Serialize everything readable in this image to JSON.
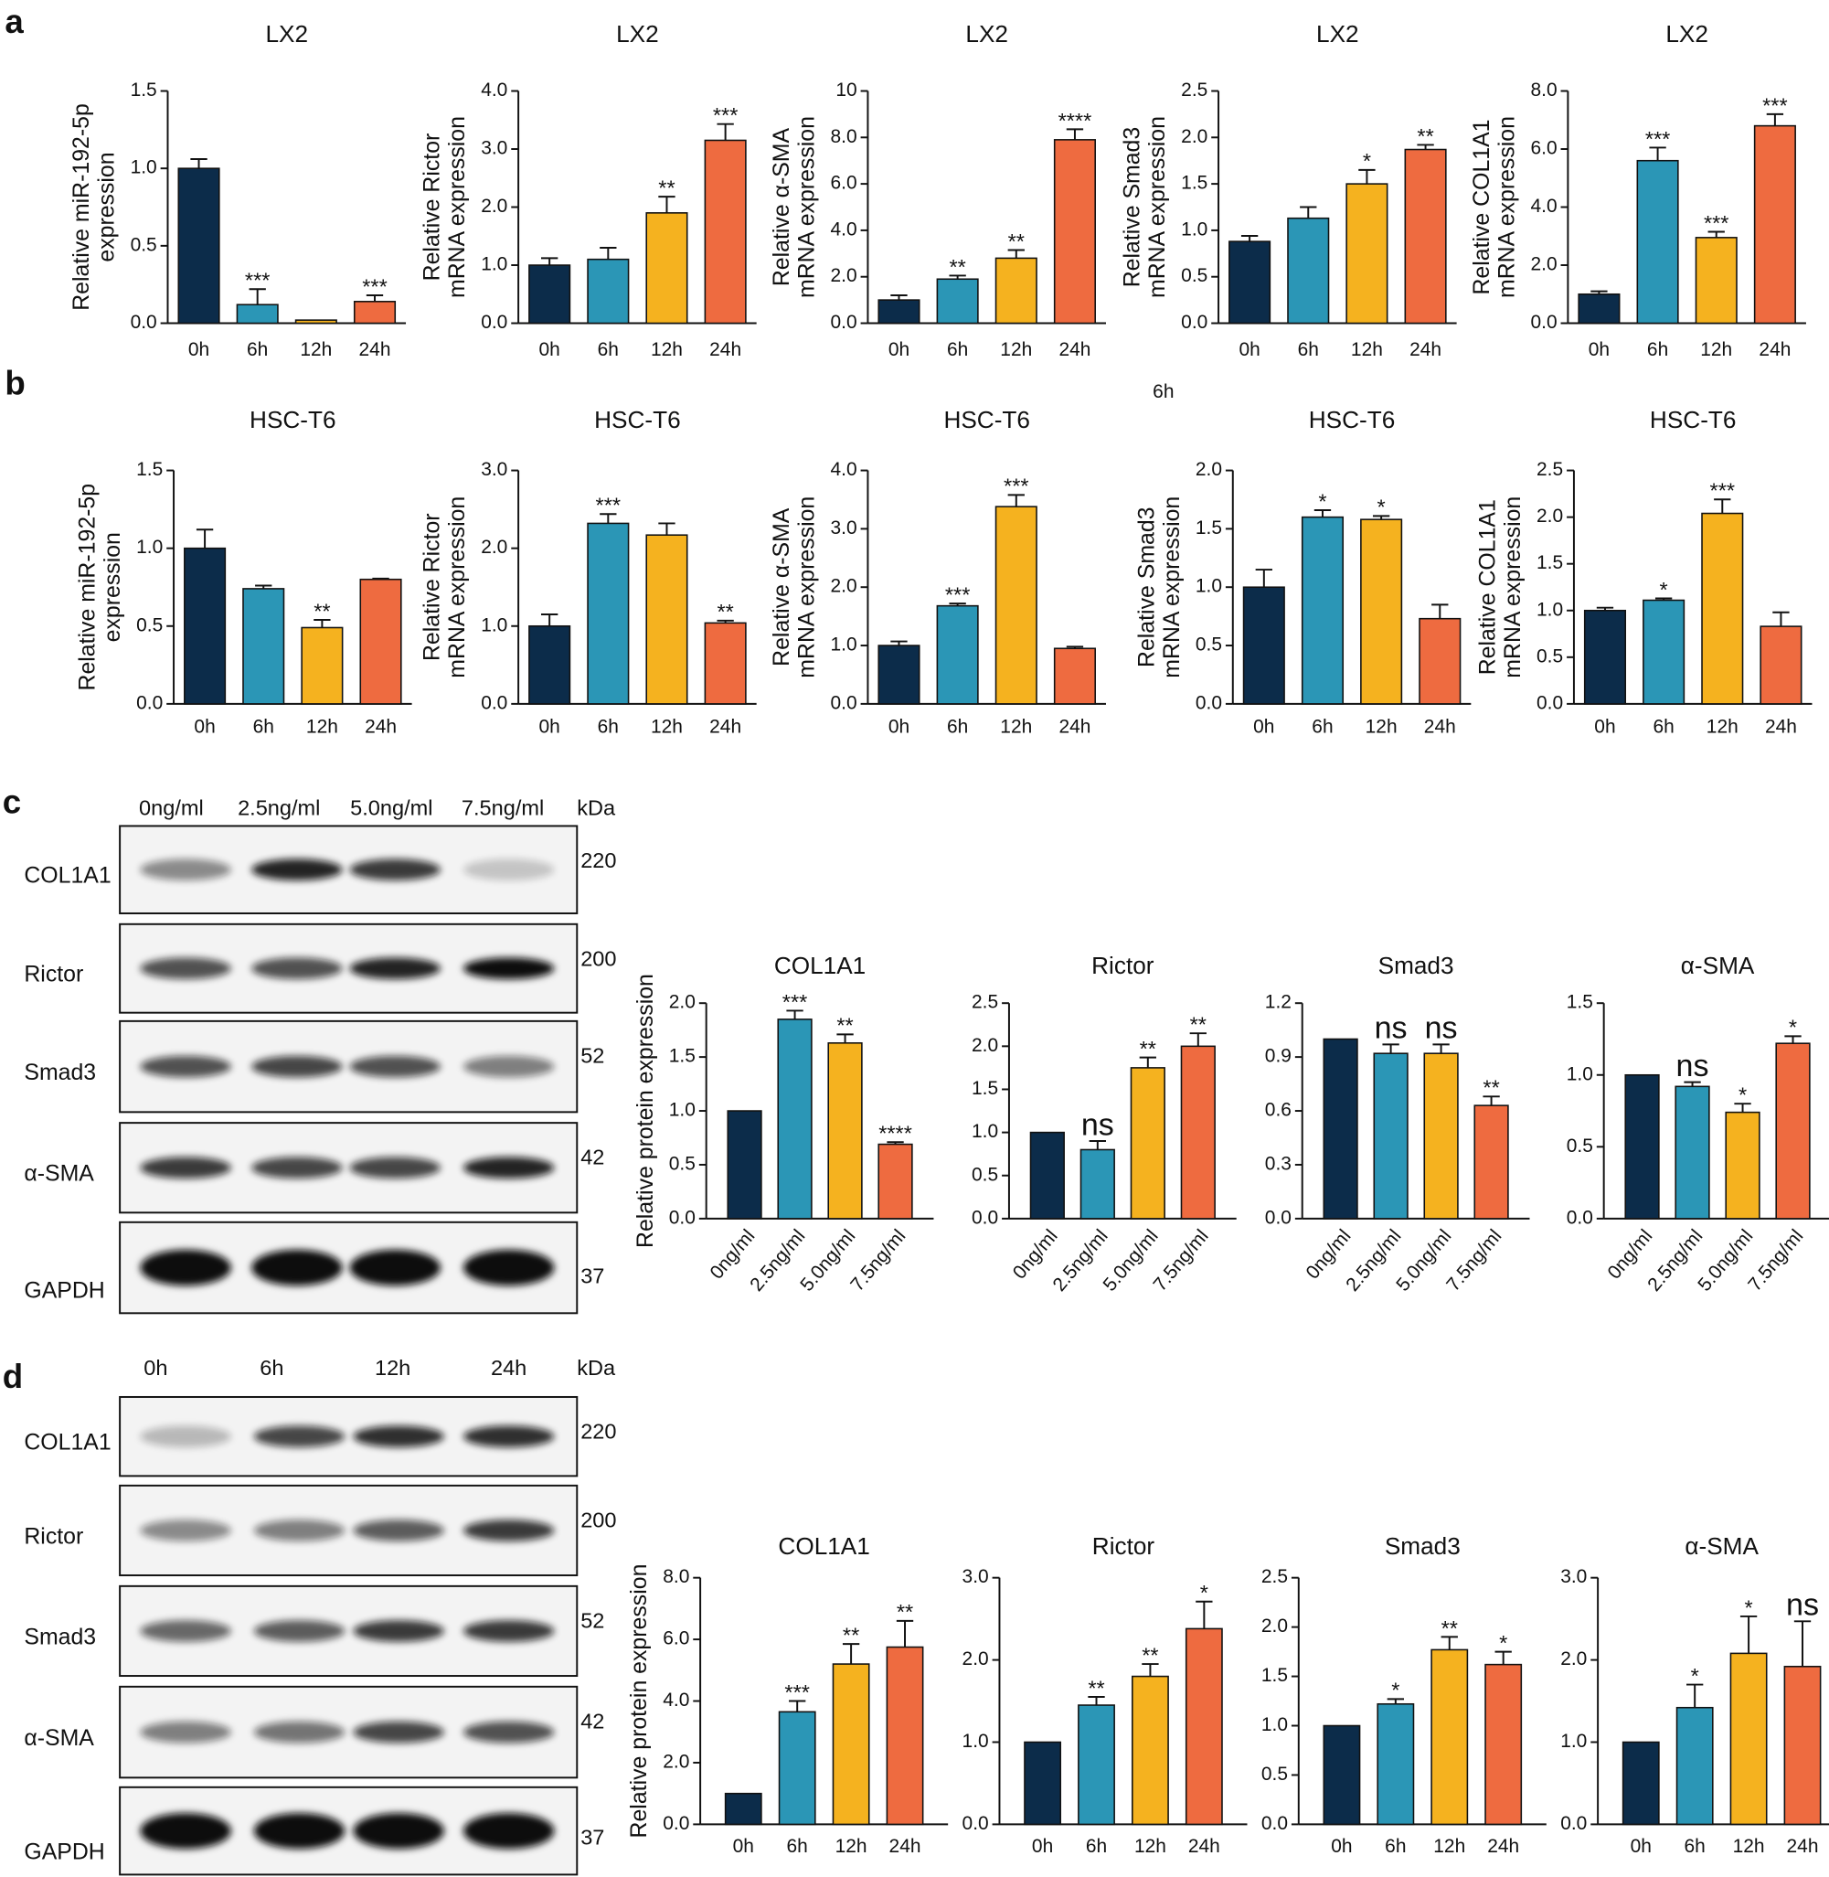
{
  "panel_labels": [
    "a",
    "b",
    "c",
    "d"
  ],
  "extra_label": "6h",
  "chart_data": [
    {
      "type": "bar",
      "title": "LX2",
      "ylabel": [
        "Relative miR-192-5p",
        "expression"
      ],
      "categories": [
        "0h",
        "6h",
        "12h",
        "24h"
      ],
      "values": [
        1.0,
        0.12,
        0.02,
        0.14
      ],
      "errors": [
        0.06,
        0.1,
        null,
        0.04
      ],
      "annotations": [
        null,
        "***",
        null,
        "***"
      ],
      "colors": [
        "#0c2c4a",
        "#2b96b6",
        "#f5b21f",
        "#ee6b40"
      ],
      "ylim": [
        0,
        1.5
      ],
      "yticks": [
        {
          "value": 0,
          "label": "0.0"
        },
        0.5,
        {
          "value": 1,
          "label": "1.0"
        },
        1.5
      ]
    },
    {
      "type": "bar",
      "title": "LX2",
      "ylabel": [
        "Relative Rictor",
        "mRNA expression"
      ],
      "categories": [
        "0h",
        "6h",
        "12h",
        "24h"
      ],
      "values": [
        1.0,
        1.1,
        1.9,
        3.15
      ],
      "errors": [
        0.12,
        0.2,
        0.28,
        0.28
      ],
      "annotations": [
        null,
        null,
        "**",
        "***"
      ],
      "colors": [
        "#0c2c4a",
        "#2b96b6",
        "#f5b21f",
        "#ee6b40"
      ],
      "ylim": [
        0,
        4
      ],
      "yticks": [
        {
          "value": 0,
          "label": "0.0"
        },
        {
          "value": 1,
          "label": "1.0"
        },
        {
          "value": 2,
          "label": "2.0"
        },
        {
          "value": 3,
          "label": "3.0"
        },
        {
          "value": 4,
          "label": "4.0"
        }
      ]
    },
    {
      "type": "bar",
      "title": "LX2",
      "ylabel": [
        "Relative α-SMA",
        "mRNA expression"
      ],
      "categories": [
        "0h",
        "6h",
        "12h",
        "24h"
      ],
      "values": [
        1.0,
        1.9,
        2.8,
        7.9
      ],
      "errors": [
        0.2,
        0.15,
        0.35,
        0.45
      ],
      "annotations": [
        null,
        "**",
        "**",
        "****"
      ],
      "colors": [
        "#0c2c4a",
        "#2b96b6",
        "#f5b21f",
        "#ee6b40"
      ],
      "ylim": [
        0,
        10
      ],
      "yticks": [
        {
          "value": 0,
          "label": "0.0"
        },
        {
          "value": 2,
          "label": "2.0"
        },
        {
          "value": 4,
          "label": "4.0"
        },
        {
          "value": 6,
          "label": "6.0"
        },
        {
          "value": 8,
          "label": "8.0"
        },
        10
      ]
    },
    {
      "type": "bar",
      "title": "LX2",
      "ylabel": [
        "Relative Smad3",
        "mRNA expression"
      ],
      "categories": [
        "0h",
        "6h",
        "12h",
        "24h"
      ],
      "values": [
        0.88,
        1.13,
        1.5,
        1.87
      ],
      "errors": [
        0.06,
        0.12,
        0.15,
        0.05
      ],
      "annotations": [
        null,
        null,
        "*",
        "**"
      ],
      "colors": [
        "#0c2c4a",
        "#2b96b6",
        "#f5b21f",
        "#ee6b40"
      ],
      "ylim": [
        0,
        2.5
      ],
      "yticks": [
        {
          "value": 0,
          "label": "0.0"
        },
        0.5,
        {
          "value": 1,
          "label": "1.0"
        },
        1.5,
        {
          "value": 2,
          "label": "2.0"
        },
        2.5
      ]
    },
    {
      "type": "bar",
      "title": "LX2",
      "ylabel": [
        "Relative COL1A1",
        "mRNA expression"
      ],
      "categories": [
        "0h",
        "6h",
        "12h",
        "24h"
      ],
      "values": [
        1.0,
        5.6,
        2.95,
        6.8
      ],
      "errors": [
        0.1,
        0.45,
        0.2,
        0.4
      ],
      "annotations": [
        null,
        "***",
        "***",
        "***"
      ],
      "colors": [
        "#0c2c4a",
        "#2b96b6",
        "#f5b21f",
        "#ee6b40"
      ],
      "ylim": [
        0,
        8
      ],
      "yticks": [
        {
          "value": 0,
          "label": "0.0"
        },
        {
          "value": 2,
          "label": "2.0"
        },
        {
          "value": 4,
          "label": "4.0"
        },
        {
          "value": 6,
          "label": "6.0"
        },
        {
          "value": 8,
          "label": "8.0"
        }
      ]
    },
    {
      "type": "bar",
      "title": "HSC-T6",
      "ylabel": [
        "Relative miR-192-5p",
        "expression"
      ],
      "categories": [
        "0h",
        "6h",
        "12h",
        "24h"
      ],
      "values": [
        1.0,
        0.74,
        0.49,
        0.8
      ],
      "errors": [
        0.12,
        0.02,
        0.05,
        0.005
      ],
      "annotations": [
        null,
        null,
        "**",
        null
      ],
      "colors": [
        "#0c2c4a",
        "#2b96b6",
        "#f5b21f",
        "#ee6b40"
      ],
      "ylim": [
        0,
        1.5
      ],
      "yticks": [
        {
          "value": 0,
          "label": "0.0"
        },
        0.5,
        {
          "value": 1,
          "label": "1.0"
        },
        1.5
      ]
    },
    {
      "type": "bar",
      "title": "HSC-T6",
      "ylabel": [
        "Relative Rictor",
        "mRNA expression"
      ],
      "categories": [
        "0h",
        "6h",
        "12h",
        "24h"
      ],
      "values": [
        1.0,
        2.32,
        2.17,
        1.04
      ],
      "errors": [
        0.15,
        0.12,
        0.15,
        0.03
      ],
      "annotations": [
        null,
        "***",
        null,
        "**"
      ],
      "colors": [
        "#0c2c4a",
        "#2b96b6",
        "#f5b21f",
        "#ee6b40"
      ],
      "ylim": [
        0,
        3
      ],
      "yticks": [
        {
          "value": 0,
          "label": "0.0"
        },
        {
          "value": 1,
          "label": "1.0"
        },
        {
          "value": 2,
          "label": "2.0"
        },
        {
          "value": 3,
          "label": "3.0"
        }
      ]
    },
    {
      "type": "bar",
      "title": "HSC-T6",
      "ylabel": [
        "Relative α-SMA",
        "mRNA expression"
      ],
      "categories": [
        "0h",
        "6h",
        "12h",
        "24h"
      ],
      "values": [
        1.0,
        1.68,
        3.38,
        0.95
      ],
      "errors": [
        0.07,
        0.04,
        0.2,
        0.03
      ],
      "annotations": [
        null,
        "***",
        "***",
        null
      ],
      "colors": [
        "#0c2c4a",
        "#2b96b6",
        "#f5b21f",
        "#ee6b40"
      ],
      "ylim": [
        0,
        4
      ],
      "yticks": [
        {
          "value": 0,
          "label": "0.0"
        },
        {
          "value": 1,
          "label": "1.0"
        },
        {
          "value": 2,
          "label": "2.0"
        },
        {
          "value": 3,
          "label": "3.0"
        },
        {
          "value": 4,
          "label": "4.0"
        }
      ]
    },
    {
      "type": "bar",
      "title": "HSC-T6",
      "ylabel": [
        "Relative Smad3",
        "mRNA expression"
      ],
      "categories": [
        "0h",
        "6h",
        "12h",
        "24h"
      ],
      "values": [
        1.0,
        1.6,
        1.58,
        0.73
      ],
      "errors": [
        0.15,
        0.06,
        0.03,
        0.12
      ],
      "annotations": [
        null,
        "*",
        "*",
        null
      ],
      "colors": [
        "#0c2c4a",
        "#2b96b6",
        "#f5b21f",
        "#ee6b40"
      ],
      "ylim": [
        0,
        2
      ],
      "yticks": [
        {
          "value": 0,
          "label": "0.0"
        },
        0.5,
        {
          "value": 1,
          "label": "1.0"
        },
        1.5,
        {
          "value": 2,
          "label": "2.0"
        }
      ]
    },
    {
      "type": "bar",
      "title": "HSC-T6",
      "ylabel": [
        "Relative COL1A1",
        "mRNA expression"
      ],
      "categories": [
        "0h",
        "6h",
        "12h",
        "24h"
      ],
      "values": [
        1.0,
        1.11,
        2.04,
        0.83
      ],
      "errors": [
        0.03,
        0.02,
        0.15,
        0.15
      ],
      "annotations": [
        null,
        "*",
        "***",
        null
      ],
      "colors": [
        "#0c2c4a",
        "#2b96b6",
        "#f5b21f",
        "#ee6b40"
      ],
      "ylim": [
        0,
        2.5
      ],
      "yticks": [
        {
          "value": 0,
          "label": "0.0"
        },
        0.5,
        {
          "value": 1,
          "label": "1.0"
        },
        1.5,
        {
          "value": 2,
          "label": "2.0"
        },
        2.5
      ]
    },
    {
      "type": "bar",
      "title": "COL1A1",
      "ylabel": [
        "Relative protein expression"
      ],
      "categories": [
        "0ng/ml",
        "2.5ng/ml",
        "5.0ng/ml",
        "7.5ng/ml"
      ],
      "values": [
        1.0,
        1.85,
        1.63,
        0.69
      ],
      "errors": [
        null,
        0.08,
        0.08,
        0.02
      ],
      "annotations": [
        null,
        "***",
        "**",
        "****"
      ],
      "colors": [
        "#0c2c4a",
        "#2b96b6",
        "#f5b21f",
        "#ee6b40"
      ],
      "ylim": [
        0,
        2
      ],
      "yticks": [
        {
          "value": 0,
          "label": "0.0"
        },
        0.5,
        {
          "value": 1,
          "label": "1.0"
        },
        1.5,
        {
          "value": 2,
          "label": "2.0"
        }
      ]
    },
    {
      "type": "bar",
      "title": "Rictor",
      "categories": [
        "0ng/ml",
        "2.5ng/ml",
        "5.0ng/ml",
        "7.5ng/ml"
      ],
      "values": [
        1.0,
        0.8,
        1.75,
        2.0
      ],
      "errors": [
        null,
        0.1,
        0.12,
        0.15
      ],
      "annotations": [
        null,
        "ns",
        "**",
        "**"
      ],
      "colors": [
        "#0c2c4a",
        "#2b96b6",
        "#f5b21f",
        "#ee6b40"
      ],
      "ylim": [
        0,
        2.5
      ],
      "yticks": [
        {
          "value": 0,
          "label": "0.0"
        },
        0.5,
        {
          "value": 1,
          "label": "1.0"
        },
        1.5,
        {
          "value": 2,
          "label": "2.0"
        },
        2.5
      ]
    },
    {
      "type": "bar",
      "title": "Smad3",
      "categories": [
        "0ng/ml",
        "2.5ng/ml",
        "5.0ng/ml",
        "7.5ng/ml"
      ],
      "values": [
        1.0,
        0.92,
        0.92,
        0.63
      ],
      "errors": [
        null,
        0.05,
        0.05,
        0.05
      ],
      "annotations": [
        null,
        "ns",
        "ns",
        "**"
      ],
      "colors": [
        "#0c2c4a",
        "#2b96b6",
        "#f5b21f",
        "#ee6b40"
      ],
      "ylim": [
        0,
        1.2
      ],
      "yticks": [
        {
          "value": 0,
          "label": "0.0"
        },
        0.3,
        0.6,
        0.9,
        1.2
      ]
    },
    {
      "type": "bar",
      "title": "α-SMA",
      "categories": [
        "0ng/ml",
        "2.5ng/ml",
        "5.0ng/ml",
        "7.5ng/ml"
      ],
      "values": [
        1.0,
        0.92,
        0.74,
        1.22
      ],
      "errors": [
        null,
        0.03,
        0.06,
        0.05
      ],
      "annotations": [
        null,
        "ns",
        "*",
        "*"
      ],
      "colors": [
        "#0c2c4a",
        "#2b96b6",
        "#f5b21f",
        "#ee6b40"
      ],
      "ylim": [
        0,
        1.5
      ],
      "yticks": [
        {
          "value": 0,
          "label": "0.0"
        },
        0.5,
        {
          "value": 1,
          "label": "1.0"
        },
        1.5
      ]
    },
    {
      "type": "bar",
      "title": "COL1A1",
      "ylabel": [
        "Relative protein expression"
      ],
      "categories": [
        "0h",
        "6h",
        "12h",
        "24h"
      ],
      "values": [
        1.0,
        3.65,
        5.2,
        5.75
      ],
      "errors": [
        null,
        0.35,
        0.65,
        0.85
      ],
      "annotations": [
        null,
        "***",
        "**",
        "**"
      ],
      "colors": [
        "#0c2c4a",
        "#2b96b6",
        "#f5b21f",
        "#ee6b40"
      ],
      "ylim": [
        0,
        8
      ],
      "yticks": [
        {
          "value": 0,
          "label": "0.0"
        },
        {
          "value": 2,
          "label": "2.0"
        },
        {
          "value": 4,
          "label": "4.0"
        },
        {
          "value": 6,
          "label": "6.0"
        },
        {
          "value": 8,
          "label": "8.0"
        }
      ]
    },
    {
      "type": "bar",
      "title": "Rictor",
      "categories": [
        "0h",
        "6h",
        "12h",
        "24h"
      ],
      "values": [
        1.0,
        1.45,
        1.8,
        2.38
      ],
      "errors": [
        null,
        0.1,
        0.15,
        0.33
      ],
      "annotations": [
        null,
        "**",
        "**",
        "*"
      ],
      "colors": [
        "#0c2c4a",
        "#2b96b6",
        "#f5b21f",
        "#ee6b40"
      ],
      "ylim": [
        0,
        3
      ],
      "yticks": [
        {
          "value": 0,
          "label": "0.0"
        },
        {
          "value": 1,
          "label": "1.0"
        },
        {
          "value": 2,
          "label": "2.0"
        },
        {
          "value": 3,
          "label": "3.0"
        }
      ]
    },
    {
      "type": "bar",
      "title": "Smad3",
      "categories": [
        "0h",
        "6h",
        "12h",
        "24h"
      ],
      "values": [
        1.0,
        1.22,
        1.77,
        1.62
      ],
      "errors": [
        null,
        0.05,
        0.13,
        0.13
      ],
      "annotations": [
        null,
        "*",
        "**",
        "*"
      ],
      "colors": [
        "#0c2c4a",
        "#2b96b6",
        "#f5b21f",
        "#ee6b40"
      ],
      "ylim": [
        0,
        2.5
      ],
      "yticks": [
        {
          "value": 0,
          "label": "0.0"
        },
        0.5,
        {
          "value": 1,
          "label": "1.0"
        },
        1.5,
        {
          "value": 2,
          "label": "2.0"
        },
        2.5
      ]
    },
    {
      "type": "bar",
      "title": "α-SMA",
      "categories": [
        "0h",
        "6h",
        "12h",
        "24h"
      ],
      "values": [
        1.0,
        1.42,
        2.08,
        1.92
      ],
      "errors": [
        null,
        0.28,
        0.45,
        0.55
      ],
      "annotations": [
        null,
        "*",
        "*",
        "ns"
      ],
      "colors": [
        "#0c2c4a",
        "#2b96b6",
        "#f5b21f",
        "#ee6b40"
      ],
      "ylim": [
        0,
        3
      ],
      "yticks": [
        {
          "value": 0,
          "label": "0.0"
        },
        {
          "value": 1,
          "label": "1.0"
        },
        {
          "value": 2,
          "label": "2.0"
        },
        {
          "value": 3,
          "label": "3.0"
        }
      ]
    }
  ],
  "blots": [
    {
      "lanes": [
        "0ng/ml",
        "2.5ng/ml",
        "5.0ng/ml",
        "7.5ng/ml"
      ],
      "kda_header": "kDa",
      "rows": [
        {
          "protein": "COL1A1",
          "kda": 220
        },
        {
          "protein": "Rictor",
          "kda": 200
        },
        {
          "protein": "Smad3",
          "kda": 52
        },
        {
          "protein": "α-SMA",
          "kda": 42
        },
        {
          "protein": "GAPDH",
          "kda": 37
        }
      ]
    },
    {
      "lanes": [
        "0h",
        "6h",
        "12h",
        "24h"
      ],
      "kda_header": "kDa",
      "rows": [
        {
          "protein": "COL1A1",
          "kda": 220
        },
        {
          "protein": "Rictor",
          "kda": 200
        },
        {
          "protein": "Smad3",
          "kda": 52
        },
        {
          "protein": "α-SMA",
          "kda": 42
        },
        {
          "protein": "GAPDH",
          "kda": 37
        }
      ]
    }
  ]
}
